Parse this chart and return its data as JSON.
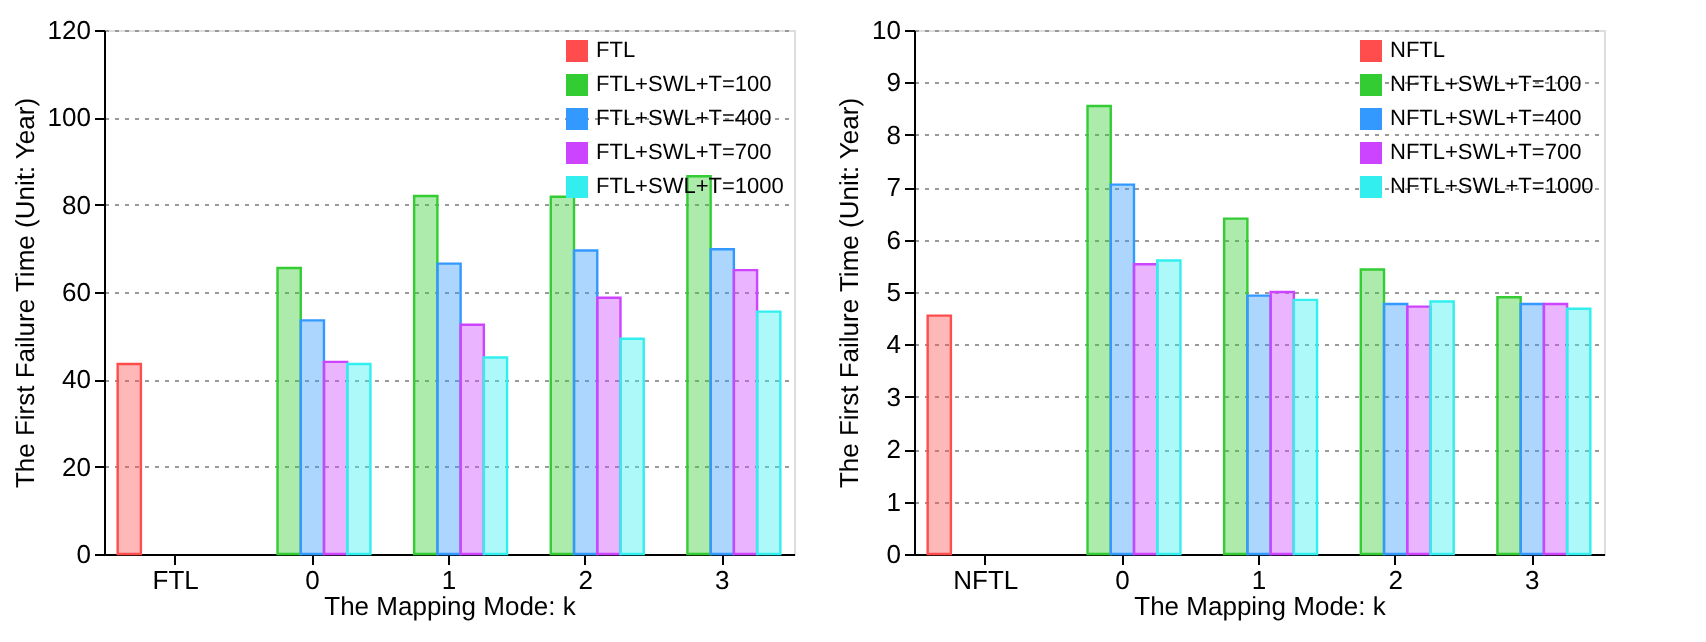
{
  "chart_data": [
    {
      "type": "bar",
      "xlabel": "The Mapping Mode: k",
      "ylabel": "The First Failure Time (Unit: Year)",
      "categories": [
        "FTL",
        "0",
        "1",
        "2",
        "3"
      ],
      "ylim": [
        0,
        120
      ],
      "yticks": [
        0,
        20,
        40,
        60,
        80,
        100,
        120
      ],
      "grid": "y",
      "legend": "top right",
      "series": [
        {
          "name": "FTL",
          "color": "#ff4d4d",
          "values": [
            43.5,
            null,
            null,
            null,
            null
          ]
        },
        {
          "name": "FTL+SWL+T=100",
          "color": "#33cc33",
          "values": [
            null,
            65.5,
            82,
            81.8,
            86.5
          ]
        },
        {
          "name": "FTL+SWL+T=400",
          "color": "#3399ff",
          "values": [
            null,
            53.5,
            66.5,
            69.5,
            69.8
          ]
        },
        {
          "name": "FTL+SWL+T=700",
          "color": "#cc44ff",
          "values": [
            null,
            44,
            52.5,
            58.7,
            65
          ]
        },
        {
          "name": "FTL+SWL+T=1000",
          "color": "#33eeee",
          "values": [
            null,
            43.5,
            45,
            49.3,
            55.5
          ]
        }
      ]
    },
    {
      "type": "bar",
      "xlabel": "The Mapping Mode: k",
      "ylabel": "The First Failure Time (Unit: Year)",
      "categories": [
        "NFTL",
        "0",
        "1",
        "2",
        "3"
      ],
      "ylim": [
        0,
        10
      ],
      "yticks": [
        0,
        1,
        2,
        3,
        4,
        5,
        6,
        7,
        8,
        9,
        10
      ],
      "grid": "y",
      "legend": "top right",
      "series": [
        {
          "name": "NFTL",
          "color": "#ff4d4d",
          "values": [
            4.55,
            null,
            null,
            null,
            null
          ]
        },
        {
          "name": "NFTL+SWL+T=100",
          "color": "#33cc33",
          "values": [
            null,
            8.55,
            6.4,
            5.43,
            4.9
          ]
        },
        {
          "name": "NFTL+SWL+T=400",
          "color": "#3399ff",
          "values": [
            null,
            7.05,
            4.93,
            4.77,
            4.77
          ]
        },
        {
          "name": "NFTL+SWL+T=700",
          "color": "#cc44ff",
          "values": [
            null,
            5.53,
            5.0,
            4.72,
            4.77
          ]
        },
        {
          "name": "NFTL+SWL+T=1000",
          "color": "#33eeee",
          "values": [
            null,
            5.6,
            4.85,
            4.82,
            4.68
          ]
        }
      ]
    }
  ]
}
